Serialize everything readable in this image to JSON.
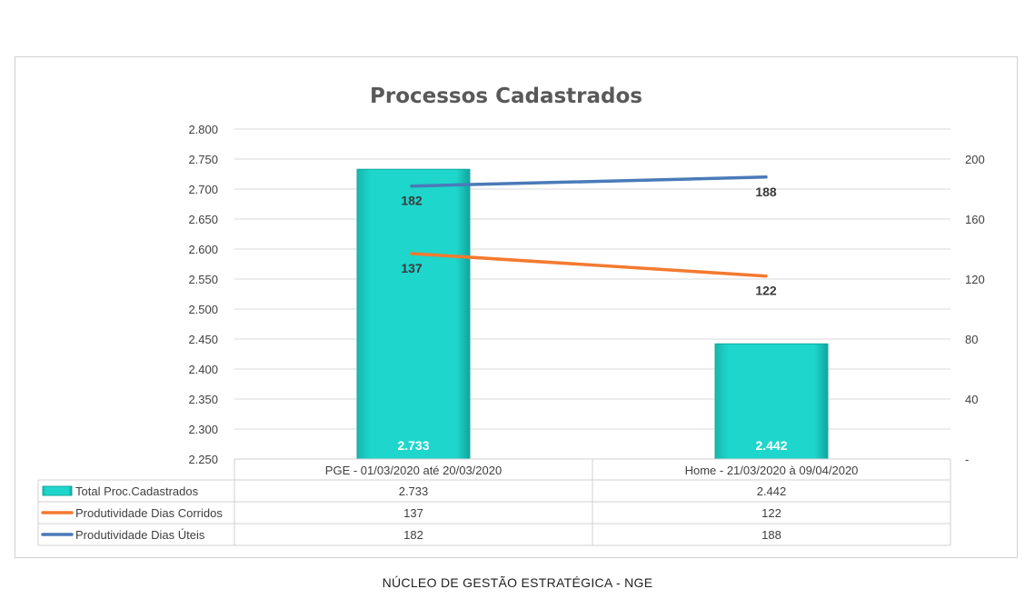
{
  "chart_data": {
    "type": "bar",
    "title": "Processos Cadastrados",
    "categories": [
      "PGE - 01/03/2020 até 20/03/2020",
      "Home - 21/03/2020 à 09/04/2020"
    ],
    "bar_series": {
      "name": "Total Proc.Cadastrados",
      "values": [
        2733,
        2442
      ],
      "data_labels": [
        "2.733",
        "2.442"
      ],
      "color": "#1ed6cc"
    },
    "line_series": [
      {
        "name": "Produtividade Dias Corridos",
        "values": [
          137,
          122
        ],
        "data_labels": [
          "137",
          "122"
        ],
        "color": "#f47a30"
      },
      {
        "name": "Produtividade Dias Úteis",
        "values": [
          182,
          188
        ],
        "data_labels": [
          "182",
          "188"
        ],
        "color": "#4a7ab8"
      }
    ],
    "y_left": {
      "min": 2250,
      "max": 2800,
      "step": 50,
      "tick_labels": [
        "2.250",
        "2.300",
        "2.350",
        "2.400",
        "2.450",
        "2.500",
        "2.550",
        "2.600",
        "2.650",
        "2.700",
        "2.750",
        "2.800"
      ]
    },
    "y_right": {
      "min": 0,
      "max": 220,
      "step": 40,
      "tick_labels": [
        "-",
        "40",
        "80",
        "120",
        "160",
        "200"
      ]
    },
    "grid": true,
    "data_table": {
      "rows": [
        {
          "label": "Total Proc.Cadastrados",
          "values": [
            "2.733",
            "2.442"
          ]
        },
        {
          "label": "Produtividade Dias Corridos",
          "values": [
            "137",
            "122"
          ]
        },
        {
          "label": "Produtividade Dias Úteis",
          "values": [
            "182",
            "188"
          ]
        }
      ]
    }
  },
  "footer": {
    "text": "NÚCLEO DE GESTÃO ESTRATÉGICA - NGE"
  }
}
